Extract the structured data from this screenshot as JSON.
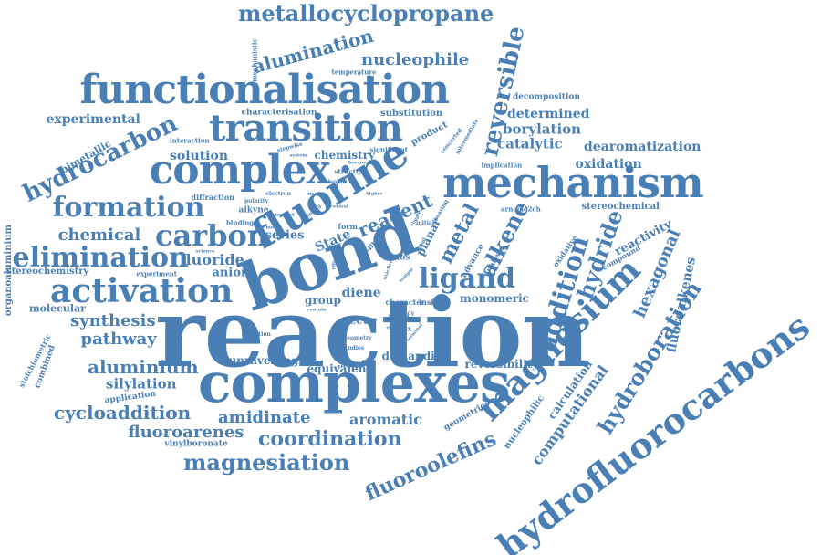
{
  "word_cloud": {
    "color": "#4a7fb5",
    "words": [
      {
        "text": "reaction",
        "weight": 100
      },
      {
        "text": "bond",
        "weight": 72
      },
      {
        "text": "complexes",
        "weight": 62
      },
      {
        "text": "functionalisation",
        "weight": 44
      },
      {
        "text": "mechanism",
        "weight": 48
      },
      {
        "text": "complex",
        "weight": 46
      },
      {
        "text": "fluorine",
        "weight": 46
      },
      {
        "text": "transition",
        "weight": 42
      },
      {
        "text": "hydrofluorocarbons",
        "weight": 40
      },
      {
        "text": "magnesium",
        "weight": 40
      },
      {
        "text": "activation",
        "weight": 38
      },
      {
        "text": "carbon",
        "weight": 34
      },
      {
        "text": "elimination",
        "weight": 32
      },
      {
        "text": "formation",
        "weight": 31
      },
      {
        "text": "ligand",
        "weight": 30
      },
      {
        "text": "addition",
        "weight": 30
      },
      {
        "text": "hydrocarbon",
        "weight": 28
      },
      {
        "text": "reversible",
        "weight": 26
      },
      {
        "text": "hydroboration",
        "weight": 26
      },
      {
        "text": "metallocyclopropane",
        "weight": 24
      },
      {
        "text": "magnesiation",
        "weight": 24
      },
      {
        "text": "alkene",
        "weight": 24
      },
      {
        "text": "hydride",
        "weight": 24
      },
      {
        "text": "fluoroolefins",
        "weight": 23
      },
      {
        "text": "coordination",
        "weight": 22
      },
      {
        "text": "metal",
        "weight": 22
      },
      {
        "text": "alumination",
        "weight": 20
      },
      {
        "text": "reagent",
        "weight": 20
      },
      {
        "text": "cycloaddition",
        "weight": 20
      },
      {
        "text": "aluminium",
        "weight": 20
      },
      {
        "text": "chemical",
        "weight": 19
      },
      {
        "text": "nucleophile",
        "weight": 19
      },
      {
        "text": "hexagonal",
        "weight": 19
      },
      {
        "text": "synthesis",
        "weight": 18
      },
      {
        "text": "pathway",
        "weight": 18
      },
      {
        "text": "fluoroarenes",
        "weight": 18
      },
      {
        "text": "amidinate",
        "weight": 18
      },
      {
        "text": "aromatic",
        "weight": 17
      },
      {
        "text": "fluoride",
        "weight": 17
      },
      {
        "text": "computational",
        "weight": 17
      },
      {
        "text": "fluoroalkenes",
        "weight": 16
      },
      {
        "text": "experimental",
        "weight": 16
      },
      {
        "text": "borylation",
        "weight": 16
      },
      {
        "text": "silylation",
        "weight": 16
      },
      {
        "text": "catalytic",
        "weight": 16
      },
      {
        "text": "State",
        "weight": 16
      },
      {
        "text": "diene",
        "weight": 16
      },
      {
        "text": "solution",
        "weight": 15
      },
      {
        "text": "dearomatization",
        "weight": 15
      },
      {
        "text": "determined",
        "weight": 14
      },
      {
        "text": "oxidation",
        "weight": 14
      },
      {
        "text": "reactivity",
        "weight": 14
      },
      {
        "text": "anion",
        "weight": 14
      },
      {
        "text": "series",
        "weight": 13
      },
      {
        "text": "unravelling",
        "weight": 13
      },
      {
        "text": "equivalent",
        "weight": 12
      },
      {
        "text": "demanding",
        "weight": 12
      },
      {
        "text": "reversibility",
        "weight": 12
      },
      {
        "text": "monomeric",
        "weight": 12
      },
      {
        "text": "occur",
        "weight": 12
      },
      {
        "text": "group",
        "weight": 12
      },
      {
        "text": "chemistry",
        "weight": 12
      },
      {
        "text": "calculation",
        "weight": 12
      },
      {
        "text": "planar",
        "weight": 12
      },
      {
        "text": "molecular",
        "weight": 12
      },
      {
        "text": "bimetallic",
        "weight": 11
      },
      {
        "text": "stereochemistry",
        "weight": 11
      },
      {
        "text": "stereochemical",
        "weight": 11
      },
      {
        "text": "substitution",
        "weight": 11
      },
      {
        "text": "product",
        "weight": 11
      },
      {
        "text": "nucleophilic",
        "weight": 10
      },
      {
        "text": "combined",
        "weight": 10
      },
      {
        "text": "organoaluminium",
        "weight": 10
      },
      {
        "text": "application",
        "weight": 10
      },
      {
        "text": "stoichiometric",
        "weight": 10
      },
      {
        "text": "geometries",
        "weight": 10
      },
      {
        "text": "vinylboronate",
        "weight": 10
      },
      {
        "text": "characterisation",
        "weight": 10
      },
      {
        "text": "decomposition",
        "weight": 10
      },
      {
        "text": "hfos",
        "weight": 10
      },
      {
        "text": "advance",
        "weight": 10
      },
      {
        "text": "alkyne",
        "weight": 10
      },
      {
        "text": "main",
        "weight": 10
      },
      {
        "text": "form",
        "weight": 9
      },
      {
        "text": "compound",
        "weight": 9
      },
      {
        "text": "insight",
        "weight": 9
      },
      {
        "text": "character",
        "weight": 8
      },
      {
        "text": "analysis",
        "weight": 9
      },
      {
        "text": "oxidative",
        "weight": 8
      },
      {
        "text": "diffraction",
        "weight": 8
      },
      {
        "text": "binding",
        "weight": 8
      },
      {
        "text": "temperature",
        "weight": 8
      },
      {
        "text": "mechanistic",
        "weight": 8
      },
      {
        "text": "significant",
        "weight": 8
      },
      {
        "text": "interaction",
        "weight": 8
      },
      {
        "text": "implication",
        "weight": 8
      },
      {
        "text": "arncme2ch",
        "weight": 8
      },
      {
        "text": "experiment",
        "weight": 8
      },
      {
        "text": "structure",
        "weight": 8
      },
      {
        "text": "isolation",
        "weight": 7
      },
      {
        "text": "electron",
        "weight": 7
      },
      {
        "text": "polarity",
        "weight": 7
      },
      {
        "text": "initial",
        "weight": 7
      },
      {
        "text": "more",
        "weight": 8
      },
      {
        "text": "redox",
        "weight": 7
      },
      {
        "text": "bearing",
        "weight": 7
      },
      {
        "text": "concerted",
        "weight": 7
      },
      {
        "text": "intermediate",
        "weight": 7
      },
      {
        "text": "stepwise",
        "weight": 6
      },
      {
        "text": "condition",
        "weight": 6
      },
      {
        "text": "geometry",
        "weight": 7
      },
      {
        "text": "study",
        "weight": 7
      },
      {
        "text": "studies",
        "weight": 6
      },
      {
        "text": "contain",
        "weight": 6
      },
      {
        "text": "involve",
        "weight": 6
      },
      {
        "text": "science",
        "weight": 6
      },
      {
        "text": "borane",
        "weight": 6
      },
      {
        "text": "simple",
        "weight": 6
      },
      {
        "text": "higher",
        "weight": 6
      },
      {
        "text": "trigonal",
        "weight": 6
      },
      {
        "text": "terminal",
        "weight": 6
      },
      {
        "text": "recent",
        "weight": 6
      },
      {
        "text": "central",
        "weight": 6
      },
      {
        "text": "crystal",
        "weight": 6
      },
      {
        "text": "sample",
        "weight": 5
      },
      {
        "text": "model",
        "weight": 5
      },
      {
        "text": "reactive",
        "weight": 5
      },
      {
        "text": "method",
        "weight": 5
      },
      {
        "text": "bonding",
        "weight": 5
      },
      {
        "text": "system",
        "weight": 5
      },
      {
        "text": "efficient",
        "weight": 5
      },
      {
        "text": "site",
        "weight": 5
      }
    ]
  }
}
